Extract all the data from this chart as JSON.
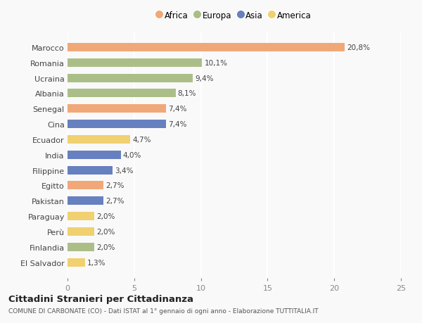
{
  "countries": [
    "Marocco",
    "Romania",
    "Ucraina",
    "Albania",
    "Senegal",
    "Cina",
    "Ecuador",
    "India",
    "Filippine",
    "Egitto",
    "Pakistan",
    "Paraguay",
    "Perù",
    "Finlandia",
    "El Salvador"
  ],
  "values": [
    20.8,
    10.1,
    9.4,
    8.1,
    7.4,
    7.4,
    4.7,
    4.0,
    3.4,
    2.7,
    2.7,
    2.0,
    2.0,
    2.0,
    1.3
  ],
  "labels": [
    "20,8%",
    "10,1%",
    "9,4%",
    "8,1%",
    "7,4%",
    "7,4%",
    "4,7%",
    "4,0%",
    "3,4%",
    "2,7%",
    "2,7%",
    "2,0%",
    "2,0%",
    "2,0%",
    "1,3%"
  ],
  "continents": [
    "Africa",
    "Europa",
    "Europa",
    "Europa",
    "Africa",
    "Asia",
    "America",
    "Asia",
    "Asia",
    "Africa",
    "Asia",
    "America",
    "America",
    "Europa",
    "America"
  ],
  "colors": {
    "Africa": "#F0A878",
    "Europa": "#ABBE88",
    "Asia": "#6680C0",
    "America": "#F0D070"
  },
  "legend_order": [
    "Africa",
    "Europa",
    "Asia",
    "America"
  ],
  "title": "Cittadini Stranieri per Cittadinanza",
  "subtitle": "COMUNE DI CARBONATE (CO) - Dati ISTAT al 1° gennaio di ogni anno - Elaborazione TUTTITALIA.IT",
  "xlim": [
    0,
    25
  ],
  "xticks": [
    0,
    5,
    10,
    15,
    20,
    25
  ],
  "background_color": "#f9f9f9"
}
